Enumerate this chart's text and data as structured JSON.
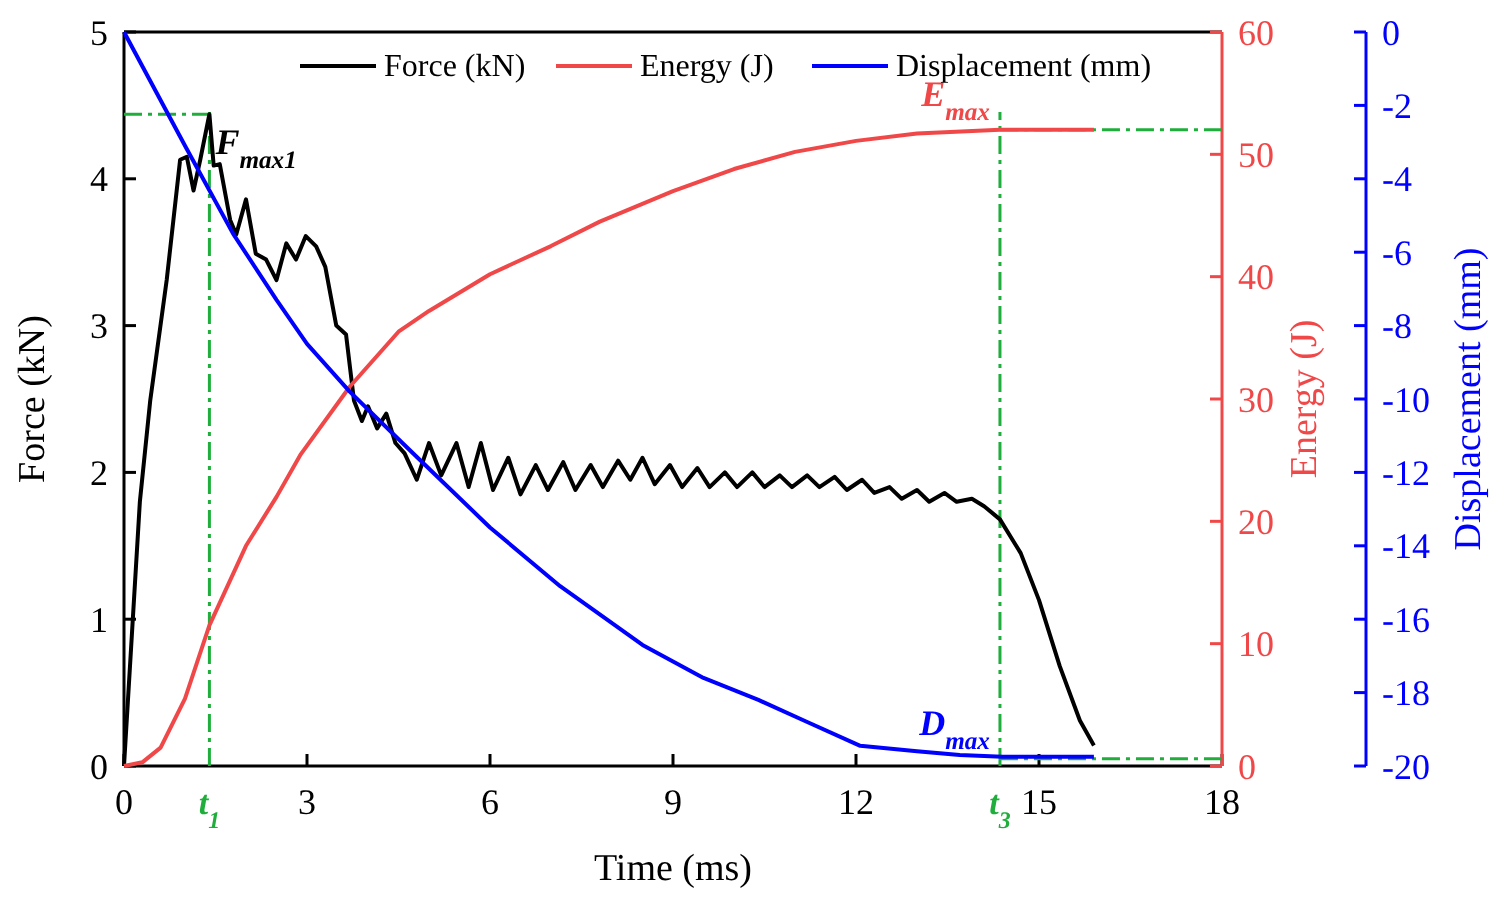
{
  "chart_data": {
    "type": "line",
    "xlabel": "Time (ms)",
    "ylabel": "Force (kN)",
    "y2label": "Energy (J)",
    "y3label": "Displacement (mm)",
    "xlim": [
      0,
      18
    ],
    "xticks": [
      0,
      3,
      6,
      9,
      12,
      15,
      18
    ],
    "ylim": [
      0,
      5
    ],
    "yticks": [
      0,
      1,
      2,
      3,
      4,
      5
    ],
    "y2lim": [
      0,
      60
    ],
    "y2ticks": [
      0,
      10,
      20,
      30,
      40,
      50,
      60
    ],
    "y3lim": [
      -20,
      0
    ],
    "y3ticks": [
      -20,
      -18,
      -16,
      -14,
      -12,
      -10,
      -8,
      -6,
      -4,
      -2,
      0
    ],
    "legend": "top",
    "grid": false,
    "line_style": "solid",
    "marker": "none",
    "series": [
      {
        "name": "Force (kN)",
        "color": "#000000",
        "x": [
          0,
          0.26,
          0.43,
          0.7,
          0.92,
          1.03,
          1.14,
          1.25,
          1.4,
          1.47,
          1.57,
          1.74,
          1.84,
          2.0,
          2.16,
          2.33,
          2.5,
          2.66,
          2.82,
          2.98,
          3.15,
          3.3,
          3.48,
          3.64,
          3.77,
          3.9,
          4.0,
          4.15,
          4.3,
          4.45,
          4.6,
          4.8,
          5.0,
          5.2,
          5.45,
          5.65,
          5.85,
          6.05,
          6.3,
          6.5,
          6.75,
          6.95,
          7.2,
          7.4,
          7.65,
          7.85,
          8.1,
          8.3,
          8.5,
          8.7,
          8.95,
          9.15,
          9.4,
          9.6,
          9.85,
          10.05,
          10.3,
          10.5,
          10.75,
          10.95,
          11.2,
          11.4,
          11.65,
          11.85,
          12.1,
          12.3,
          12.55,
          12.75,
          13.0,
          13.2,
          13.45,
          13.65,
          13.9,
          14.1,
          14.36,
          14.7,
          15.0,
          15.34,
          15.67,
          15.9
        ],
        "values": [
          0,
          1.8,
          2.49,
          3.31,
          4.13,
          4.15,
          3.92,
          4.13,
          4.44,
          4.09,
          4.1,
          3.72,
          3.62,
          3.86,
          3.49,
          3.45,
          3.31,
          3.56,
          3.45,
          3.61,
          3.54,
          3.4,
          3.0,
          2.94,
          2.49,
          2.35,
          2.45,
          2.3,
          2.4,
          2.2,
          2.13,
          1.95,
          2.2,
          1.98,
          2.2,
          1.9,
          2.2,
          1.88,
          2.1,
          1.85,
          2.05,
          1.88,
          2.07,
          1.88,
          2.05,
          1.9,
          2.08,
          1.95,
          2.1,
          1.92,
          2.05,
          1.9,
          2.03,
          1.9,
          2.0,
          1.9,
          2.0,
          1.9,
          1.98,
          1.9,
          1.98,
          1.9,
          1.97,
          1.88,
          1.95,
          1.86,
          1.9,
          1.82,
          1.88,
          1.8,
          1.86,
          1.8,
          1.82,
          1.77,
          1.68,
          1.45,
          1.13,
          0.68,
          0.31,
          0.14
        ]
      },
      {
        "name": "Energy (J)",
        "color": "#f04848",
        "axis": "y2",
        "x": [
          0,
          0.3,
          0.6,
          1.0,
          1.4,
          2.0,
          2.5,
          2.9,
          3.7,
          4.5,
          5.0,
          6.0,
          7.0,
          7.8,
          9.0,
          10.0,
          11.0,
          12.0,
          13.0,
          14.36,
          15.9
        ],
        "values": [
          0,
          0.3,
          1.5,
          5.5,
          11.5,
          18,
          22,
          25.5,
          31,
          35.5,
          37.2,
          40.2,
          42.5,
          44.5,
          47,
          48.8,
          50.2,
          51.1,
          51.7,
          52,
          52
        ]
      },
      {
        "name": "Displacement (mm)",
        "color": "#0000ff",
        "axis": "y3",
        "x": [
          0,
          1,
          1.79,
          2.5,
          3,
          3.7,
          4.75,
          6,
          7.15,
          8.5,
          9.5,
          10.4,
          11.2,
          12.07,
          13,
          13.7,
          14.4,
          15.9
        ],
        "values": [
          0,
          -3.1,
          -5.5,
          -7.3,
          -8.5,
          -9.8,
          -11.5,
          -13.5,
          -15.1,
          -16.7,
          -17.6,
          -18.2,
          -18.8,
          -19.45,
          -19.6,
          -19.7,
          -19.75,
          -19.75
        ]
      }
    ],
    "ref_lines": [
      {
        "axis": "x",
        "value": 1.4,
        "label": "t$_{1}$",
        "color": "#1fae3c",
        "line_style": "dashed"
      },
      {
        "axis": "x",
        "value": 14.36,
        "label": "t$_{3}$",
        "color": "#1fae3c",
        "line_style": "dashed"
      },
      {
        "axis": "y",
        "value": 4.44,
        "label": "F$_{max1}$",
        "color": "#1fae3c",
        "line_style": "dashed"
      },
      {
        "axis": "y2",
        "value": 52,
        "label": "E$_{max}$",
        "color": "#1fae3c",
        "line_style": "dashed"
      },
      {
        "axis": "y3",
        "value": -19.8,
        "label": "D$_{max}$",
        "color": "#1fae3c",
        "line_style": "dashed"
      }
    ]
  }
}
